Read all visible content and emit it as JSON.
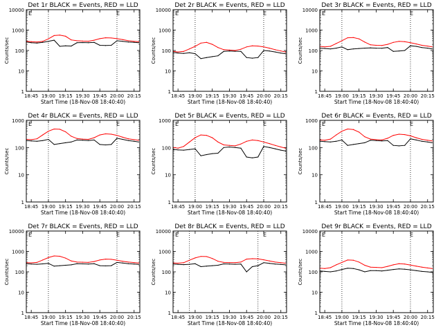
{
  "figure": {
    "panels": [
      {
        "title": "Det 1r BLACK = Events, RED = LLD",
        "xlabel": "Start Time (18-Nov-08 18:40:40)",
        "ylabel": "Counts/sec",
        "corner_tag": "E"
      },
      {
        "title": "Det 2r BLACK = Events, RED = LLD",
        "xlabel": "Start Time (18-Nov-08 18:40:40)",
        "ylabel": "Counts/sec",
        "corner_tag": "E"
      },
      {
        "title": "Det 3r BLACK = Events, RED = LLD",
        "xlabel": "Start Time (18-Nov-08 18:40:40)",
        "ylabel": "Counts/sec",
        "corner_tag": "E"
      },
      {
        "title": "Det 4r BLACK = Events, RED = LLD",
        "xlabel": "Start Time (18-Nov-08 18:40:40)",
        "ylabel": "Counts/sec",
        "corner_tag": "E"
      },
      {
        "title": "Det 5r BLACK = Events, RED = LLD",
        "xlabel": "Start Time (18-Nov-08 18:40:40)",
        "ylabel": "Counts/sec",
        "corner_tag": "E"
      },
      {
        "title": "Det 6r BLACK = Events, RED = LLD",
        "xlabel": "Start Time (18-Nov-08 18:40:40)",
        "ylabel": "Counts/sec",
        "corner_tag": "E"
      },
      {
        "title": "Det 7r BLACK = Events, RED = LLD",
        "xlabel": "Start Time (18-Nov-08 18:40:40)",
        "ylabel": "Counts/sec",
        "corner_tag": "E"
      },
      {
        "title": "Det 8r BLACK = Events, RED = LLD",
        "xlabel": "Start Time (18-Nov-08 18:40:40)",
        "ylabel": "Counts/sec",
        "corner_tag": "E"
      },
      {
        "title": "Det 9r BLACK = Events, RED = LLD",
        "xlabel": "Start Time (18-Nov-08 18:40:40)",
        "ylabel": "Counts/sec",
        "corner_tag": "E"
      }
    ]
  },
  "chart_data": [
    {
      "type": "line",
      "title": "Det 1r BLACK = Events, RED = LLD",
      "xlabel": "Start Time (18-Nov-08 18:40:40)",
      "ylabel": "Counts/sec",
      "yscale": "log",
      "ylim": [
        1,
        10000
      ],
      "xlim": [
        "18:40:40",
        "20:20:00"
      ],
      "x_tick_labels": [
        "18:45",
        "19:00",
        "19:15",
        "19:30",
        "19:45",
        "20:00",
        "20:15"
      ],
      "y_tick_labels": [
        "1",
        "10",
        "100",
        "1000",
        "10000"
      ],
      "vlines": [
        "19:00",
        "20:00"
      ],
      "x": [
        "18:41",
        "18:45",
        "18:50",
        "18:55",
        "19:00",
        "19:05",
        "19:10",
        "19:15",
        "19:20",
        "19:25",
        "19:30",
        "19:35",
        "19:40",
        "19:45",
        "19:50",
        "19:55",
        "20:00",
        "20:05",
        "20:10",
        "20:15",
        "20:19"
      ],
      "series": [
        {
          "name": "Events",
          "color": "#000000",
          "values": [
            260,
            240,
            230,
            250,
            280,
            320,
            160,
            170,
            165,
            240,
            245,
            240,
            250,
            180,
            175,
            180,
            300,
            280,
            260,
            250,
            240
          ]
        },
        {
          "name": "LLD",
          "color": "#ff0000",
          "values": [
            280,
            270,
            260,
            280,
            370,
            540,
            570,
            500,
            330,
            300,
            290,
            285,
            320,
            380,
            420,
            410,
            380,
            340,
            300,
            280,
            270
          ]
        }
      ]
    },
    {
      "type": "line",
      "title": "Det 2r BLACK = Events, RED = LLD",
      "xlabel": "Start Time (18-Nov-08 18:40:40)",
      "ylabel": "Counts/sec",
      "yscale": "log",
      "ylim": [
        1,
        10000
      ],
      "xlim": [
        "18:40:40",
        "20:20:00"
      ],
      "x_tick_labels": [
        "18:45",
        "19:00",
        "19:15",
        "19:30",
        "19:45",
        "20:00",
        "20:15"
      ],
      "y_tick_labels": [
        "1",
        "10",
        "100",
        "1000",
        "10000"
      ],
      "vlines": [
        "19:00",
        "20:00"
      ],
      "x": [
        "18:41",
        "18:45",
        "18:50",
        "18:55",
        "19:00",
        "19:05",
        "19:10",
        "19:15",
        "19:20",
        "19:25",
        "19:30",
        "19:35",
        "19:40",
        "19:45",
        "19:50",
        "19:55",
        "20:00",
        "20:05",
        "20:10",
        "20:15",
        "20:19"
      ],
      "series": [
        {
          "name": "Events",
          "color": "#000000",
          "values": [
            80,
            75,
            72,
            78,
            70,
            40,
            45,
            50,
            55,
            90,
            95,
            92,
            90,
            45,
            42,
            45,
            100,
            95,
            85,
            75,
            70
          ]
        },
        {
          "name": "LLD",
          "color": "#ff0000",
          "values": [
            90,
            85,
            90,
            120,
            160,
            230,
            250,
            200,
            140,
            110,
            105,
            100,
            115,
            150,
            170,
            165,
            150,
            130,
            110,
            95,
            85
          ]
        }
      ]
    },
    {
      "type": "line",
      "title": "Det 3r BLACK = Events, RED = LLD",
      "xlabel": "Start Time (18-Nov-08 18:40:40)",
      "ylabel": "Counts/sec",
      "yscale": "log",
      "ylim": [
        1,
        10000
      ],
      "xlim": [
        "18:40:40",
        "20:20:00"
      ],
      "x_tick_labels": [
        "18:45",
        "19:00",
        "19:15",
        "19:30",
        "19:45",
        "20:00",
        "20:15"
      ],
      "y_tick_labels": [
        "1",
        "10",
        "100",
        "1000",
        "10000"
      ],
      "vlines": [
        "19:00",
        "20:00"
      ],
      "x": [
        "18:41",
        "18:45",
        "18:50",
        "18:55",
        "19:00",
        "19:05",
        "19:10",
        "19:15",
        "19:20",
        "19:25",
        "19:30",
        "19:35",
        "19:40",
        "19:45",
        "19:50",
        "19:55",
        "20:00",
        "20:05",
        "20:10",
        "20:15",
        "20:19"
      ],
      "series": [
        {
          "name": "Events",
          "color": "#000000",
          "values": [
            130,
            125,
            120,
            130,
            150,
            110,
            120,
            125,
            130,
            135,
            130,
            128,
            140,
            90,
            95,
            100,
            170,
            160,
            140,
            130,
            120
          ]
        },
        {
          "name": "LLD",
          "color": "#ff0000",
          "values": [
            160,
            150,
            160,
            220,
            300,
            420,
            430,
            370,
            260,
            190,
            180,
            175,
            200,
            250,
            280,
            270,
            240,
            210,
            180,
            165,
            150
          ]
        }
      ]
    },
    {
      "type": "line",
      "title": "Det 4r BLACK = Events, RED = LLD",
      "xlabel": "Start Time (18-Nov-08 18:40:40)",
      "ylabel": "Counts/sec",
      "yscale": "log",
      "ylim": [
        1,
        1000
      ],
      "xlim": [
        "18:40:40",
        "20:20:00"
      ],
      "x_tick_labels": [
        "18:45",
        "19:00",
        "19:15",
        "19:30",
        "19:45",
        "20:00",
        "20:15"
      ],
      "y_tick_labels": [
        "1",
        "10",
        "100",
        "1000"
      ],
      "vlines": [
        "19:00",
        "20:00"
      ],
      "x": [
        "18:41",
        "18:45",
        "18:50",
        "18:55",
        "19:00",
        "19:05",
        "19:10",
        "19:15",
        "19:20",
        "19:25",
        "19:30",
        "19:35",
        "19:40",
        "19:45",
        "19:50",
        "19:55",
        "20:00",
        "20:05",
        "20:10",
        "20:15",
        "20:19"
      ],
      "series": [
        {
          "name": "Events",
          "color": "#000000",
          "values": [
            180,
            175,
            170,
            180,
            200,
            130,
            140,
            150,
            160,
            190,
            185,
            180,
            190,
            130,
            125,
            130,
            220,
            200,
            180,
            170,
            160
          ]
        },
        {
          "name": "LLD",
          "color": "#ff0000",
          "values": [
            200,
            195,
            210,
            290,
            400,
            480,
            470,
            380,
            260,
            215,
            205,
            200,
            230,
            290,
            320,
            310,
            280,
            240,
            210,
            195,
            185
          ]
        }
      ]
    },
    {
      "type": "line",
      "title": "Det 5r BLACK = Events, RED = LLD",
      "xlabel": "Start Time (18-Nov-08 18:40:40)",
      "ylabel": "Counts/sec",
      "yscale": "log",
      "ylim": [
        1,
        1000
      ],
      "xlim": [
        "18:40:40",
        "20:20:00"
      ],
      "x_tick_labels": [
        "18:45",
        "19:00",
        "19:15",
        "19:30",
        "19:45",
        "20:00",
        "20:15"
      ],
      "y_tick_labels": [
        "1",
        "10",
        "100",
        "1000"
      ],
      "vlines": [
        "19:00",
        "20:00"
      ],
      "x": [
        "18:41",
        "18:45",
        "18:50",
        "18:55",
        "19:00",
        "19:05",
        "19:10",
        "19:15",
        "19:20",
        "19:25",
        "19:30",
        "19:35",
        "19:40",
        "19:45",
        "19:50",
        "19:55",
        "20:00",
        "20:05",
        "20:10",
        "20:15",
        "20:19"
      ],
      "series": [
        {
          "name": "Events",
          "color": "#000000",
          "values": [
            85,
            82,
            80,
            85,
            90,
            50,
            55,
            60,
            62,
            100,
            105,
            100,
            95,
            45,
            42,
            45,
            110,
            100,
            90,
            80,
            75
          ]
        },
        {
          "name": "LLD",
          "color": "#ff0000",
          "values": [
            100,
            95,
            110,
            160,
            230,
            290,
            280,
            230,
            160,
            125,
            120,
            115,
            135,
            170,
            190,
            180,
            160,
            140,
            120,
            105,
            95
          ]
        }
      ]
    },
    {
      "type": "line",
      "title": "Det 6r BLACK = Events, RED = LLD",
      "xlabel": "Start Time (18-Nov-08 18:40:40)",
      "ylabel": "Counts/sec",
      "yscale": "log",
      "ylim": [
        1,
        1000
      ],
      "xlim": [
        "18:40:40",
        "20:20:00"
      ],
      "x_tick_labels": [
        "18:45",
        "19:00",
        "19:15",
        "19:30",
        "19:45",
        "20:00",
        "20:15"
      ],
      "y_tick_labels": [
        "1",
        "10",
        "100",
        "1000"
      ],
      "vlines": [
        "19:00",
        "20:00"
      ],
      "x": [
        "18:41",
        "18:45",
        "18:50",
        "18:55",
        "19:00",
        "19:05",
        "19:10",
        "19:15",
        "19:20",
        "19:25",
        "19:30",
        "19:35",
        "19:40",
        "19:45",
        "19:50",
        "19:55",
        "20:00",
        "20:05",
        "20:10",
        "20:15",
        "20:19"
      ],
      "series": [
        {
          "name": "Events",
          "color": "#000000",
          "values": [
            170,
            165,
            160,
            170,
            190,
            120,
            130,
            140,
            150,
            185,
            180,
            175,
            180,
            120,
            115,
            120,
            210,
            190,
            170,
            160,
            150
          ]
        },
        {
          "name": "LLD",
          "color": "#ff0000",
          "values": [
            190,
            185,
            205,
            290,
            400,
            480,
            460,
            370,
            250,
            205,
            195,
            190,
            220,
            280,
            310,
            300,
            270,
            230,
            200,
            185,
            175
          ]
        }
      ]
    },
    {
      "type": "line",
      "title": "Det 7r BLACK = Events, RED = LLD",
      "xlabel": "Start Time (18-Nov-08 18:40:40)",
      "ylabel": "Counts/sec",
      "yscale": "log",
      "ylim": [
        1,
        10000
      ],
      "xlim": [
        "18:40:40",
        "20:20:00"
      ],
      "x_tick_labels": [
        "18:45",
        "19:00",
        "19:15",
        "19:30",
        "19:45",
        "20:00",
        "20:15"
      ],
      "y_tick_labels": [
        "1",
        "10",
        "100",
        "1000",
        "10000"
      ],
      "vlines": [
        "19:00",
        "20:00"
      ],
      "x": [
        "18:41",
        "18:45",
        "18:50",
        "18:55",
        "19:00",
        "19:05",
        "19:10",
        "19:15",
        "19:20",
        "19:25",
        "19:30",
        "19:35",
        "19:40",
        "19:45",
        "19:50",
        "19:55",
        "20:00",
        "20:05",
        "20:10",
        "20:15",
        "20:19"
      ],
      "series": [
        {
          "name": "Events",
          "color": "#000000",
          "values": [
            250,
            240,
            235,
            245,
            260,
            190,
            200,
            210,
            220,
            250,
            245,
            240,
            250,
            200,
            195,
            200,
            290,
            270,
            250,
            240,
            230
          ]
        },
        {
          "name": "LLD",
          "color": "#ff0000",
          "values": [
            280,
            275,
            290,
            380,
            500,
            600,
            580,
            470,
            340,
            300,
            295,
            290,
            320,
            380,
            420,
            410,
            370,
            330,
            300,
            285,
            270
          ]
        }
      ]
    },
    {
      "type": "line",
      "title": "Det 8r BLACK = Events, RED = LLD",
      "xlabel": "Start Time (18-Nov-08 18:40:40)",
      "ylabel": "Counts/sec",
      "yscale": "log",
      "ylim": [
        1,
        10000
      ],
      "xlim": [
        "18:40:40",
        "20:20:00"
      ],
      "x_tick_labels": [
        "18:45",
        "19:00",
        "19:15",
        "19:30",
        "19:45",
        "20:00",
        "20:15"
      ],
      "y_tick_labels": [
        "1",
        "10",
        "100",
        "1000",
        "10000"
      ],
      "vlines": [
        "18:55",
        "19:55"
      ],
      "x": [
        "18:41",
        "18:45",
        "18:50",
        "18:55",
        "19:00",
        "19:05",
        "19:10",
        "19:15",
        "19:20",
        "19:25",
        "19:30",
        "19:35",
        "19:40",
        "19:45",
        "19:50",
        "19:55",
        "20:00",
        "20:05",
        "20:10",
        "20:15",
        "20:19"
      ],
      "series": [
        {
          "name": "Events",
          "color": "#000000",
          "values": [
            240,
            230,
            225,
            235,
            250,
            180,
            190,
            200,
            210,
            245,
            240,
            235,
            240,
            100,
            180,
            200,
            280,
            260,
            240,
            230,
            220
          ]
        },
        {
          "name": "LLD",
          "color": "#ff0000",
          "values": [
            270,
            265,
            280,
            370,
            480,
            570,
            560,
            450,
            330,
            290,
            285,
            280,
            300,
            420,
            440,
            430,
            390,
            340,
            300,
            280,
            265
          ]
        }
      ]
    },
    {
      "type": "line",
      "title": "Det 9r BLACK = Events, RED = LLD",
      "xlabel": "Start Time (18-Nov-08 18:40:40)",
      "ylabel": "Counts/sec",
      "yscale": "log",
      "ylim": [
        1,
        10000
      ],
      "xlim": [
        "18:40:40",
        "20:20:00"
      ],
      "x_tick_labels": [
        "18:45",
        "19:00",
        "19:15",
        "19:30",
        "19:45",
        "20:00",
        "20:15"
      ],
      "y_tick_labels": [
        "1",
        "10",
        "100",
        "1000",
        "10000"
      ],
      "vlines": [
        "19:00",
        "20:00"
      ],
      "x": [
        "18:41",
        "18:45",
        "18:50",
        "18:55",
        "19:00",
        "19:05",
        "19:10",
        "19:15",
        "19:20",
        "19:25",
        "19:30",
        "19:35",
        "19:40",
        "19:45",
        "19:50",
        "19:55",
        "20:00",
        "20:05",
        "20:10",
        "20:15",
        "20:19"
      ],
      "series": [
        {
          "name": "Events",
          "color": "#000000",
          "values": [
            110,
            105,
            100,
            110,
            130,
            150,
            145,
            125,
            100,
            115,
            115,
            110,
            120,
            130,
            140,
            135,
            125,
            115,
            105,
            100,
            95
          ]
        },
        {
          "name": "LLD",
          "color": "#ff0000",
          "values": [
            150,
            145,
            160,
            220,
            290,
            380,
            370,
            300,
            210,
            170,
            165,
            160,
            185,
            220,
            250,
            240,
            215,
            190,
            170,
            155,
            145
          ]
        }
      ]
    }
  ]
}
